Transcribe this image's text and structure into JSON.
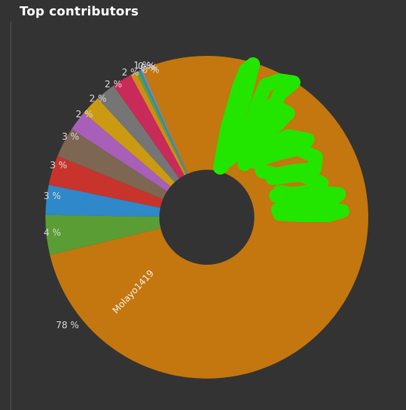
{
  "panel": {
    "title": "Top contributors"
  },
  "colors": {
    "background": "#333333",
    "scribble": "#22e600"
  },
  "chart_data": {
    "type": "pie",
    "variant": "donut",
    "title": "Top contributors",
    "slices": [
      {
        "name": "Molayo1419",
        "value": 78,
        "label": "78 %",
        "color": "#c3770e"
      },
      {
        "name": "",
        "value": 4,
        "label": "4 %",
        "color": "#5a9d35"
      },
      {
        "name": "",
        "value": 3,
        "label": "3 %",
        "color": "#2f88c9"
      },
      {
        "name": "",
        "value": 3,
        "label": "3 %",
        "color": "#c8332b"
      },
      {
        "name": "",
        "value": 3,
        "label": "3 %",
        "color": "#7d6652"
      },
      {
        "name": "",
        "value": 2,
        "label": "2 %",
        "color": "#a75fb9"
      },
      {
        "name": "",
        "value": 2,
        "label": "2 %",
        "color": "#c99a12"
      },
      {
        "name": "",
        "value": 2,
        "label": "2 %",
        "color": "#757575"
      },
      {
        "name": "",
        "value": 2,
        "label": "2 %",
        "color": "#c82a5a"
      },
      {
        "name": "",
        "value": 0.6,
        "label": "1 %",
        "color": "#cf8a1c"
      },
      {
        "name": "",
        "value": 0.3,
        "label": "0 %",
        "color": "#5aa13a"
      },
      {
        "name": "",
        "value": 0.2,
        "label": "0 %",
        "color": "#2f88c9"
      },
      {
        "name": "",
        "value": 0.2,
        "label": "0 %",
        "color": "#8a8a8a"
      }
    ]
  }
}
